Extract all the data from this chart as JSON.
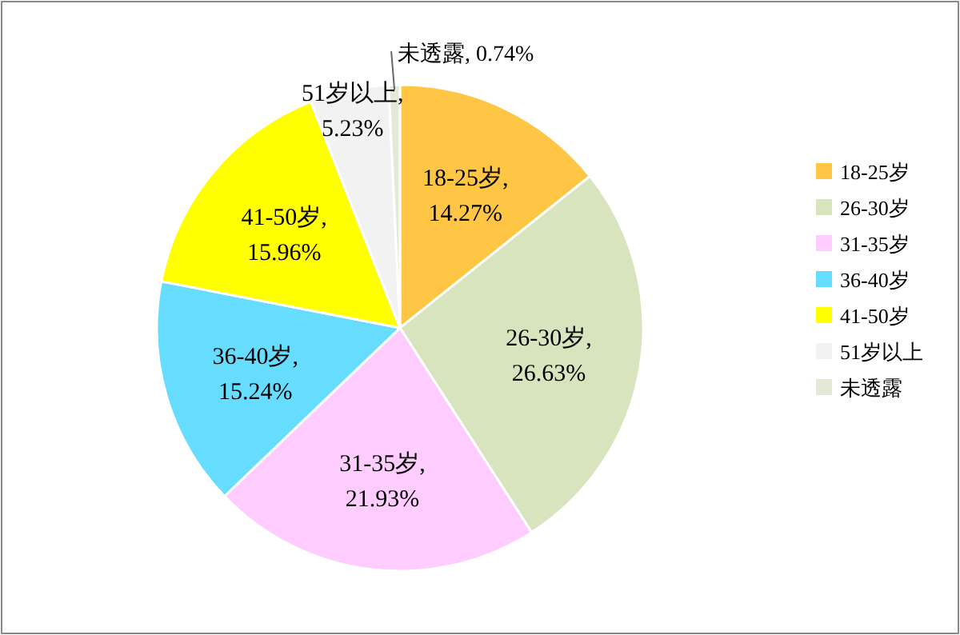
{
  "chart_data": {
    "type": "pie",
    "categories": [
      "18-25岁",
      "26-30岁",
      "31-35岁",
      "36-40岁",
      "41-50岁",
      "51岁以上",
      "未透露"
    ],
    "values": [
      14.27,
      26.63,
      21.93,
      15.24,
      15.96,
      5.23,
      0.74
    ],
    "colors": [
      "#ffc646",
      "#d7e4bd",
      "#ffccff",
      "#66dcff",
      "#ffff00",
      "#f2f2f2",
      "#e4e8d6"
    ],
    "value_labels": [
      "18-25岁, 14.27%",
      "26-30岁, 26.63%",
      "31-35岁, 21.93%",
      "36-40岁, 15.24%",
      "41-50岁, 15.96%",
      "51岁以上, 5.23%",
      "未透露, 0.74%"
    ],
    "legend": "right"
  }
}
